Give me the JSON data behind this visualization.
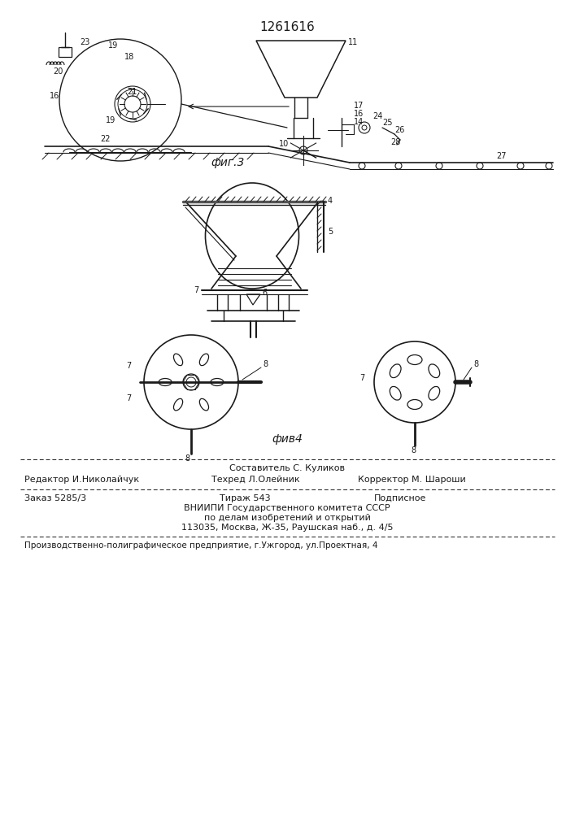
{
  "title_number": "1261616",
  "fig3_label": "фиг.3",
  "fig4_label": "фив4",
  "background_color": "#ffffff",
  "text_color": "#1a1a1a",
  "line_color": "#1a1a1a",
  "footer_line0": "Составитель С. Куликов",
  "footer_line1_left": "Редактор И.Николайчук",
  "footer_line1_center": "Техред Л.Олейник",
  "footer_line1_right": "Корректор М. Шароши",
  "footer_line2_left": "Заказ 5285/3",
  "footer_line2_center": "Тираж 543",
  "footer_line2_right": "Подписное",
  "footer_line3": "ВНИИПИ Государственного комитета СССР",
  "footer_line4": "по делам изобретений и открытий",
  "footer_line5": "113035, Москва, Ж-35, Раушская наб., д. 4/5",
  "footer_line6": "Производственно-полиграфическое предприятие, г.Ужгород, ул.Проектная, 4"
}
